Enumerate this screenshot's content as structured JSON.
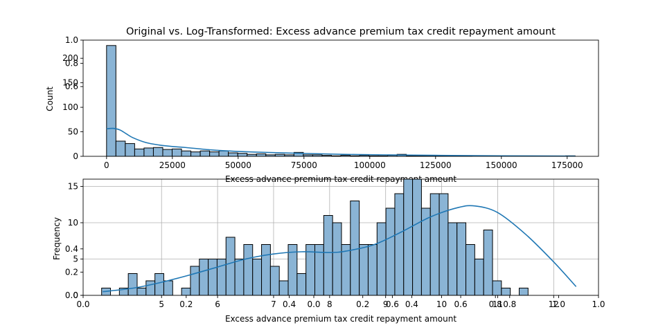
{
  "figure": {
    "title": "Original vs. Log-Transformed: Excess advance premium tax credit repayment amount"
  },
  "colors": {
    "bar_fill": "#8ab4d5",
    "bar_edge": "#000000",
    "kde_line": "#1f77b4",
    "grid": "#b0b0b0"
  },
  "chart_data": [
    {
      "type": "bar",
      "name": "original-histogram",
      "title": "",
      "xlabel": "Excess advance premium tax credit repayment amount",
      "ylabel": "Count",
      "xlim": [
        -8900,
        186900
      ],
      "ylim": [
        0,
        237
      ],
      "xticks": [
        0,
        25000,
        50000,
        75000,
        100000,
        125000,
        150000,
        175000
      ],
      "xtick_labels": [
        "0",
        "25000",
        "50000",
        "75000",
        "100000",
        "125000",
        "150000",
        "175000"
      ],
      "yticks": [
        0,
        50,
        100,
        150,
        200
      ],
      "overlay_yticks": [
        0.6,
        0.8,
        1.0
      ],
      "bin_start": 0,
      "bin_width": 3560,
      "counts": [
        226,
        31,
        26,
        15,
        17,
        18,
        14,
        15,
        11,
        9,
        11,
        9,
        11,
        7,
        6,
        4,
        5,
        3,
        4,
        3,
        8,
        3,
        3,
        2,
        1,
        2,
        1,
        2,
        1,
        1,
        2,
        4,
        1,
        1,
        1,
        1,
        1,
        1,
        1,
        0,
        0,
        0,
        0,
        0,
        0,
        0,
        0,
        0,
        0,
        1
      ],
      "kde": {
        "x": [
          0,
          2500,
          5000,
          7500,
          10000,
          15000,
          20000,
          25000,
          30000,
          40000,
          50000,
          60000,
          75000,
          90000,
          105000,
          125000,
          150000,
          178000
        ],
        "y": [
          56,
          57,
          54,
          46,
          38,
          28,
          23,
          20,
          18,
          13,
          10,
          8,
          6,
          4,
          3,
          2,
          1,
          0.5
        ]
      },
      "grid": false
    },
    {
      "type": "bar",
      "name": "log-histogram",
      "title": "",
      "xlabel": "Excess advance premium tax credit repayment amount",
      "ylabel": "Frequency",
      "xlim": [
        3.6,
        12.8
      ],
      "ylim": [
        0,
        16
      ],
      "xticks": [
        5,
        6,
        7,
        8,
        9,
        10,
        11,
        12
      ],
      "xtick_labels": [
        "5",
        "6",
        "7",
        "8",
        "9",
        "10",
        "11",
        "12"
      ],
      "yticks": [
        0,
        5,
        10,
        15
      ],
      "overlay_xticks": [
        {
          "v": 0.0,
          "label": "0.0"
        },
        {
          "v": 0.2,
          "label": "0.2"
        },
        {
          "v": 0.4,
          "label": "0.4"
        },
        {
          "v": 0.6,
          "label": "0.6"
        },
        {
          "v": 0.8,
          "label": "0.8"
        },
        {
          "v": 1.0,
          "label": "1.0"
        },
        {
          "v": 0.0,
          "label": "0.0"
        },
        {
          "v": 0.2,
          "label": "0.2"
        },
        {
          "v": 0.4,
          "label": "0.4"
        },
        {
          "v": 0.6,
          "label": "0.6"
        },
        {
          "v": 0.8,
          "label": "0.8"
        },
        {
          "v": 1.0,
          "label": "1.0"
        }
      ],
      "overlay_yticks": [
        0.0,
        0.2,
        0.4
      ],
      "bin_start": 3.93,
      "bin_width": 0.1586,
      "counts": [
        1,
        0,
        1,
        3,
        1,
        2,
        3,
        2,
        0,
        1,
        4,
        5,
        5,
        5,
        8,
        5,
        7,
        5,
        7,
        4,
        2,
        7,
        3,
        7,
        7,
        11,
        10,
        7,
        13,
        7,
        7,
        10,
        12,
        14,
        16,
        16,
        12,
        14,
        14,
        10,
        10,
        7,
        5,
        9,
        2,
        1,
        0,
        1
      ],
      "kde": {
        "x": [
          3.95,
          4.5,
          5.0,
          5.5,
          6.0,
          6.5,
          7.0,
          7.5,
          8.0,
          8.3,
          8.8,
          9.3,
          9.8,
          10.3,
          10.6,
          11.0,
          11.5,
          12.0,
          12.4
        ],
        "y": [
          0.5,
          1.0,
          1.8,
          2.8,
          3.9,
          5.0,
          5.7,
          6.0,
          5.9,
          6.1,
          7.0,
          8.8,
          10.8,
          12.1,
          12.3,
          11.4,
          8.4,
          4.6,
          1.2
        ]
      },
      "grid": true
    }
  ]
}
